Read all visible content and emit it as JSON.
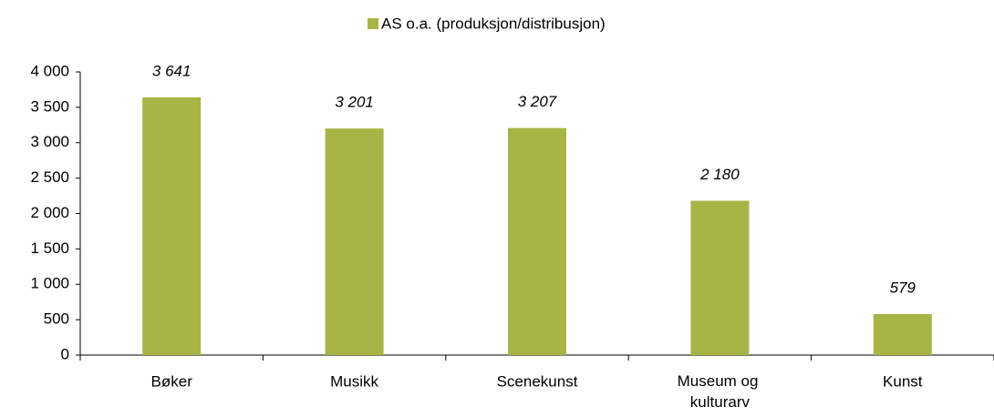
{
  "chart_data": {
    "type": "bar",
    "categories": [
      "Bøker",
      "Musikk",
      "Scenekunst",
      "Museum og kulturarv",
      "Kunst"
    ],
    "series": [
      {
        "name": "AS o.a. (produksjon/distribusjon)",
        "color": "#a6b544",
        "values": [
          3641,
          3201,
          3207,
          2180,
          579
        ],
        "value_labels": [
          "3 641",
          "3 201",
          "3 207",
          "2 180",
          "579"
        ]
      }
    ],
    "ylim": [
      0,
      4000
    ],
    "yticks": [
      0,
      500,
      {
        "value": 1000,
        "label": "1 000"
      },
      {
        "value": 1500,
        "label": "1 500"
      },
      {
        "value": 2000,
        "label": "2 000"
      },
      {
        "value": 2500,
        "label": "2 500"
      },
      {
        "value": 3000,
        "label": "3 000"
      },
      {
        "value": 3500,
        "label": "3 500"
      },
      {
        "value": 4000,
        "label": "4 000"
      }
    ],
    "grid": false,
    "legend": "top"
  }
}
